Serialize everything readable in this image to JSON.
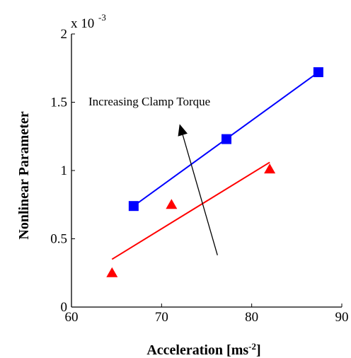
{
  "chart_data": {
    "type": "scatter",
    "xlabel": "Acceleration [ms",
    "xlabel_sup": "-2",
    "xlabel_close": "]",
    "ylabel": "Nonlinear Parameter",
    "xlim": [
      60,
      90
    ],
    "ylim": [
      0,
      2
    ],
    "y_scale_prefix": "x 10",
    "y_scale_exponent": "-3",
    "x_ticks": [
      "60",
      "70",
      "80",
      "90"
    ],
    "y_ticks": [
      "0",
      "0.5",
      "1",
      "1.5",
      "2"
    ],
    "grid": false,
    "legend": "none",
    "annotation": "Increasing Clamp Torque",
    "arrow": {
      "from": [
        76.2,
        0.38
      ],
      "to": [
        72.0,
        1.34
      ]
    },
    "series": [
      {
        "marker": "square",
        "color": "#0000ff",
        "points": [
          [
            66.9,
            0.74
          ],
          [
            77.2,
            1.23
          ],
          [
            87.4,
            1.72
          ]
        ],
        "fit": [
          [
            66.9,
            0.74
          ],
          [
            87.4,
            1.72
          ]
        ]
      },
      {
        "marker": "triangle",
        "color": "#ff0000",
        "points": [
          [
            64.5,
            0.25
          ],
          [
            71.1,
            0.75
          ],
          [
            82.0,
            1.01
          ]
        ],
        "fit": [
          [
            64.5,
            0.35
          ],
          [
            82.0,
            1.06
          ]
        ]
      }
    ]
  }
}
